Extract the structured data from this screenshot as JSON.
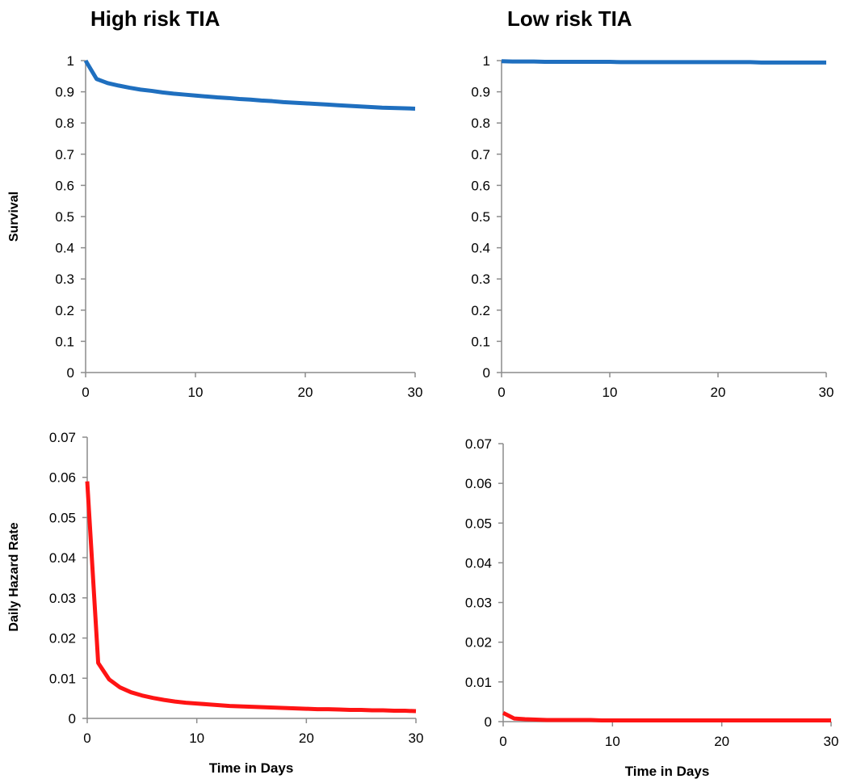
{
  "titles": {
    "left": "High risk TIA",
    "right": "Low risk TIA"
  },
  "colors": {
    "survival_line": "#1f6fbf",
    "hazard_line": "#ff1414",
    "axis": "#8c8c8c"
  },
  "chart_data": [
    {
      "id": "survival-high",
      "type": "line",
      "title": "High risk TIA",
      "xlabel": "",
      "ylabel": "Survival",
      "xlim": [
        0,
        30
      ],
      "ylim": [
        0,
        1
      ],
      "xticks": [
        0,
        10,
        20,
        30
      ],
      "yticks": [
        0,
        0.1,
        0.2,
        0.3,
        0.4,
        0.5,
        0.6,
        0.7,
        0.8,
        0.9,
        1
      ],
      "ytick_labels": [
        "0",
        "0.1",
        "0.2",
        "0.3",
        "0.4",
        "0.5",
        "0.6",
        "0.7",
        "0.8",
        "0.9",
        "1"
      ],
      "grid": false,
      "series": [
        {
          "color": "#1f6fbf",
          "x": [
            0,
            1,
            2,
            3,
            4,
            5,
            6,
            7,
            8,
            9,
            10,
            11,
            12,
            13,
            14,
            15,
            16,
            17,
            18,
            19,
            20,
            21,
            22,
            23,
            24,
            25,
            26,
            27,
            28,
            29,
            30
          ],
          "y": [
            1.0,
            0.941,
            0.928,
            0.92,
            0.913,
            0.907,
            0.903,
            0.898,
            0.894,
            0.891,
            0.888,
            0.885,
            0.882,
            0.88,
            0.877,
            0.875,
            0.872,
            0.87,
            0.867,
            0.865,
            0.863,
            0.861,
            0.859,
            0.857,
            0.855,
            0.853,
            0.851,
            0.849,
            0.848,
            0.847,
            0.846
          ]
        }
      ]
    },
    {
      "id": "survival-low",
      "type": "line",
      "title": "Low risk TIA",
      "xlabel": "",
      "ylabel": "",
      "xlim": [
        0,
        30
      ],
      "ylim": [
        0,
        1
      ],
      "xticks": [
        0,
        10,
        20,
        30
      ],
      "yticks": [
        0,
        0.1,
        0.2,
        0.3,
        0.4,
        0.5,
        0.6,
        0.7,
        0.8,
        0.9,
        1
      ],
      "ytick_labels": [
        "0",
        "0.1",
        "0.2",
        "0.3",
        "0.4",
        "0.5",
        "0.6",
        "0.7",
        "0.8",
        "0.9",
        "1"
      ],
      "grid": false,
      "series": [
        {
          "color": "#1f6fbf",
          "x": [
            0,
            1,
            2,
            3,
            4,
            5,
            6,
            7,
            8,
            9,
            10,
            11,
            12,
            13,
            14,
            15,
            16,
            17,
            18,
            19,
            20,
            21,
            22,
            23,
            24,
            25,
            26,
            27,
            28,
            29,
            30
          ],
          "y": [
            0.998,
            0.997,
            0.997,
            0.997,
            0.996,
            0.996,
            0.996,
            0.996,
            0.996,
            0.996,
            0.996,
            0.995,
            0.995,
            0.995,
            0.995,
            0.995,
            0.995,
            0.995,
            0.995,
            0.995,
            0.995,
            0.995,
            0.995,
            0.995,
            0.994,
            0.994,
            0.994,
            0.994,
            0.994,
            0.994,
            0.994
          ]
        }
      ]
    },
    {
      "id": "hazard-high",
      "type": "line",
      "title": "",
      "xlabel": "Time in Days",
      "ylabel": "Daily Hazard Rate",
      "xlim": [
        0,
        30
      ],
      "ylim": [
        0,
        0.07
      ],
      "xticks": [
        0,
        10,
        20,
        30
      ],
      "yticks": [
        0,
        0.01,
        0.02,
        0.03,
        0.04,
        0.05,
        0.06,
        0.07
      ],
      "ytick_labels": [
        "0",
        "0.01",
        "0.02",
        "0.03",
        "0.04",
        "0.05",
        "0.06",
        "0.07"
      ],
      "grid": false,
      "series": [
        {
          "color": "#ff1414",
          "x": [
            0,
            1,
            2,
            3,
            4,
            5,
            6,
            7,
            8,
            9,
            10,
            11,
            12,
            13,
            14,
            15,
            16,
            17,
            18,
            19,
            20,
            21,
            22,
            23,
            24,
            25,
            26,
            27,
            28,
            29,
            30
          ],
          "y": [
            0.059,
            0.0138,
            0.0097,
            0.0077,
            0.0065,
            0.0057,
            0.0051,
            0.0046,
            0.0042,
            0.0039,
            0.0037,
            0.0035,
            0.0033,
            0.0031,
            0.003,
            0.0029,
            0.0028,
            0.0027,
            0.0026,
            0.0025,
            0.0024,
            0.0023,
            0.0023,
            0.0022,
            0.0021,
            0.0021,
            0.002,
            0.002,
            0.0019,
            0.0019,
            0.0018
          ]
        }
      ]
    },
    {
      "id": "hazard-low",
      "type": "line",
      "title": "",
      "xlabel": "Time in Days",
      "ylabel": "",
      "xlim": [
        0,
        30
      ],
      "ylim": [
        0,
        0.07
      ],
      "xticks": [
        0,
        10,
        20,
        30
      ],
      "yticks": [
        0,
        0.01,
        0.02,
        0.03,
        0.04,
        0.05,
        0.06,
        0.07
      ],
      "ytick_labels": [
        "0",
        "0.01",
        "0.02",
        "0.03",
        "0.04",
        "0.05",
        "0.06",
        "0.07"
      ],
      "grid": false,
      "series": [
        {
          "color": "#ff1414",
          "x": [
            0,
            1,
            2,
            3,
            4,
            5,
            6,
            7,
            8,
            9,
            10,
            11,
            12,
            13,
            14,
            15,
            16,
            17,
            18,
            19,
            20,
            21,
            22,
            23,
            24,
            25,
            26,
            27,
            28,
            29,
            30
          ],
          "y": [
            0.0022,
            0.0008,
            0.0006,
            0.0005,
            0.0004,
            0.0004,
            0.0004,
            0.0004,
            0.0004,
            0.0003,
            0.0003,
            0.0003,
            0.0003,
            0.0003,
            0.0003,
            0.0003,
            0.0003,
            0.0003,
            0.0003,
            0.0003,
            0.0003,
            0.0003,
            0.0003,
            0.0003,
            0.0003,
            0.0003,
            0.0003,
            0.0003,
            0.0003,
            0.0003,
            0.0003
          ]
        }
      ]
    }
  ]
}
